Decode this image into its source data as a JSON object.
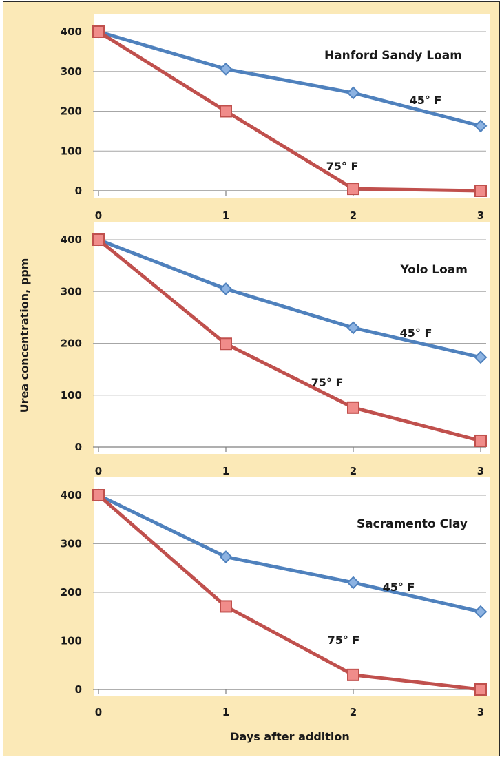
{
  "figure": {
    "ylabel": "Urea concentration, ppm",
    "xlabel": "Days after addition"
  },
  "colors": {
    "background": "#fbe9b7",
    "plot_area": "#ffffff",
    "series_45F": "#4f81bd",
    "series_45F_marker": "#8db3e2",
    "series_75F": "#c0504d",
    "series_75F_marker": "#f08c8a"
  },
  "chart_data": [
    {
      "type": "line",
      "title": "Hanford Sandy Loam",
      "x": [
        0,
        1,
        2,
        3
      ],
      "xticks": [
        "0",
        "1",
        "2",
        "3"
      ],
      "ylim": [
        0,
        400
      ],
      "yticks": [
        0,
        100,
        200,
        300,
        400
      ],
      "grid": true,
      "series": [
        {
          "name": "45° F",
          "values": [
            400,
            306,
            246,
            163
          ]
        },
        {
          "name": "75° F",
          "values": [
            400,
            200,
            5,
            0
          ]
        }
      ]
    },
    {
      "type": "line",
      "title": "Yolo Loam",
      "x": [
        0,
        1,
        2,
        3
      ],
      "xticks": [
        "0",
        "1",
        "2",
        "3"
      ],
      "ylim": [
        0,
        400
      ],
      "yticks": [
        0,
        100,
        200,
        300,
        400
      ],
      "grid": true,
      "series": [
        {
          "name": "45° F",
          "values": [
            400,
            305,
            230,
            173
          ]
        },
        {
          "name": "75° F",
          "values": [
            400,
            199,
            76,
            12
          ]
        }
      ]
    },
    {
      "type": "line",
      "title": "Sacramento Clay",
      "x": [
        0,
        1,
        2,
        3
      ],
      "xticks": [
        "0",
        "1",
        "2",
        "3"
      ],
      "ylim": [
        0,
        400
      ],
      "yticks": [
        0,
        100,
        200,
        300,
        400
      ],
      "grid": true,
      "series": [
        {
          "name": "45° F",
          "values": [
            400,
            273,
            220,
            160
          ]
        },
        {
          "name": "75° F",
          "values": [
            400,
            171,
            30,
            0
          ]
        }
      ]
    }
  ]
}
